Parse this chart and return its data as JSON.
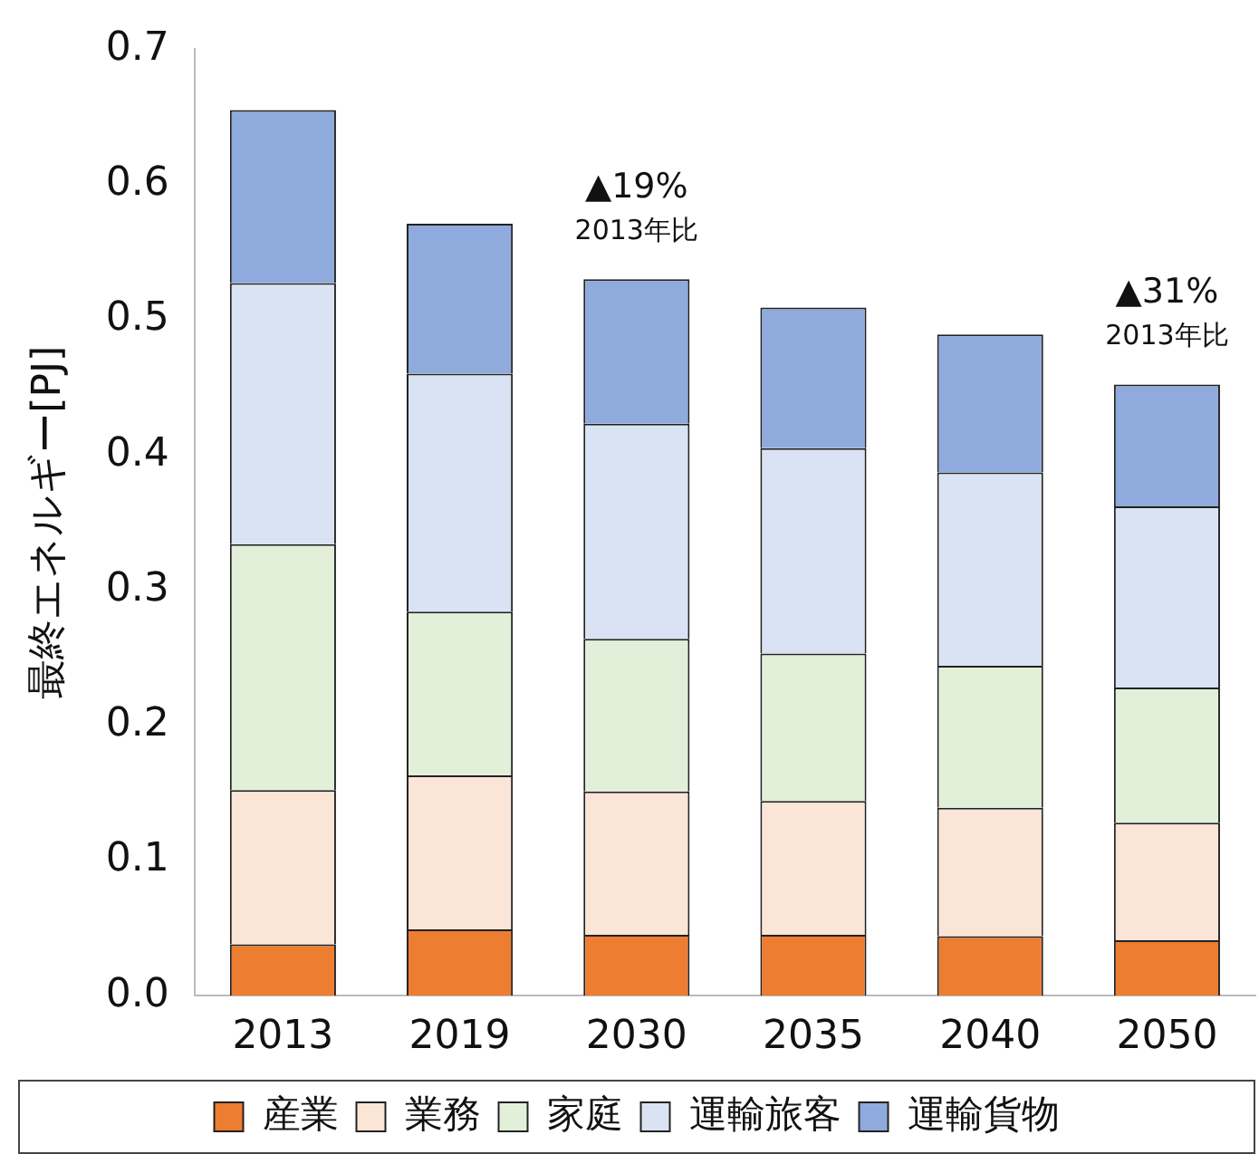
{
  "chart_data": {
    "type": "bar",
    "stacked": true,
    "ylabel": "最終エネルギー[PJ]",
    "categories": [
      "2013",
      "2019",
      "2030",
      "2035",
      "2040",
      "2050"
    ],
    "series": [
      {
        "name": "産業",
        "color": "#ed7d31",
        "values": [
          0.038,
          0.049,
          0.045,
          0.045,
          0.044,
          0.041
        ]
      },
      {
        "name": "業務",
        "color": "#fbe5d6",
        "values": [
          0.114,
          0.114,
          0.106,
          0.099,
          0.095,
          0.087
        ]
      },
      {
        "name": "家庭",
        "color": "#e2f0d9",
        "values": [
          0.182,
          0.121,
          0.113,
          0.109,
          0.105,
          0.1
        ]
      },
      {
        "name": "運輸旅客",
        "color": "#dae3f3",
        "values": [
          0.193,
          0.176,
          0.159,
          0.152,
          0.143,
          0.134
        ]
      },
      {
        "name": "運輸貨物",
        "color": "#8faadc",
        "values": [
          0.128,
          0.111,
          0.107,
          0.104,
          0.102,
          0.09
        ]
      }
    ],
    "ylim": [
      0,
      0.7
    ],
    "yticks": [
      {
        "value": 0,
        "label": "0.0"
      },
      {
        "value": 0.1,
        "label": "0.1"
      },
      {
        "value": 0.2,
        "label": "0.2"
      },
      {
        "value": 0.3,
        "label": "0.3"
      },
      {
        "value": 0.4,
        "label": "0.4"
      },
      {
        "value": 0.5,
        "label": "0.5"
      },
      {
        "value": 0.6,
        "label": "0.6"
      },
      {
        "value": 0.7,
        "label": "0.7"
      }
    ],
    "grid": false,
    "legend": "bottom",
    "annotations": [
      {
        "text": "▲19%",
        "x": "2030",
        "y": 0.53
      },
      {
        "text": "2013年比",
        "x": "2030",
        "y": 0.53
      },
      {
        "text": "▲31%",
        "x": "2050",
        "y": 0.452
      },
      {
        "text": "2013年比",
        "x": "2050",
        "y": 0.452
      }
    ]
  }
}
